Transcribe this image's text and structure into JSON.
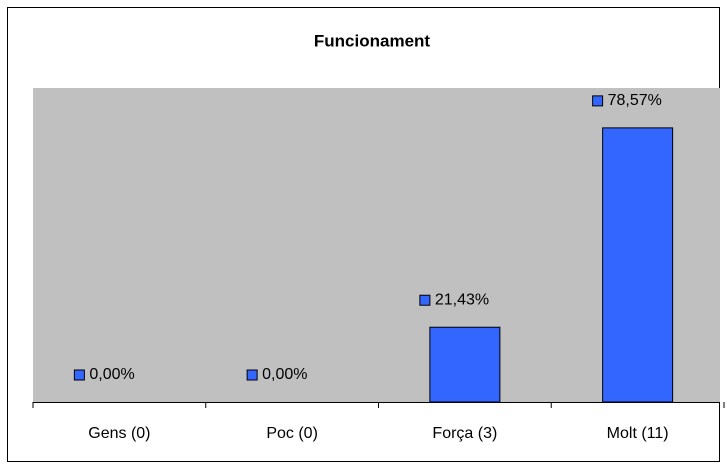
{
  "chart_data": {
    "type": "bar",
    "title": "Funcionament",
    "categories": [
      "Gens (0)",
      "Poc (0)",
      "Força (3)",
      "Molt (11)"
    ],
    "values": [
      0,
      0,
      21.43,
      78.57
    ],
    "value_labels": [
      "0,00%",
      "0,00%",
      "21,43%",
      "78,57%"
    ],
    "color": "#3366ff",
    "ylim": [
      0,
      90
    ]
  }
}
